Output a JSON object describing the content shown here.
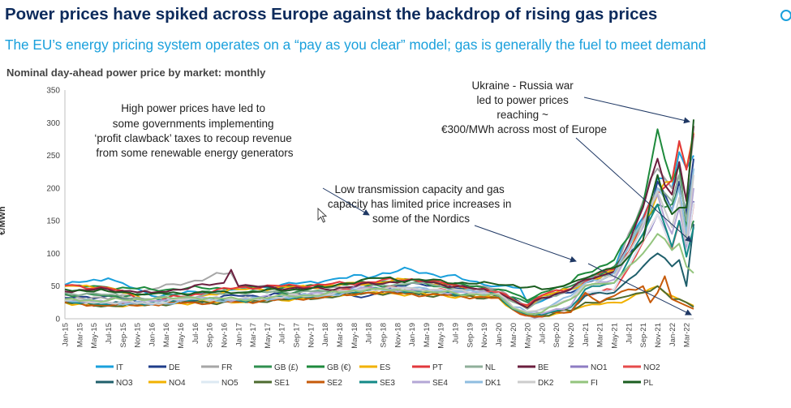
{
  "header": {
    "title": "Power prices have spiked across Europe against the backdrop of rising gas prices",
    "subtitle": "The EU’s energy pricing system operates on a “pay as you clear” model; gas is generally the fuel to meet demand"
  },
  "chart_data": {
    "type": "line",
    "title": "Nominal day-ahead power price by market: monthly",
    "ylabel": "€/MWh",
    "xlabel": "",
    "ylim": [
      0,
      350
    ],
    "yticks": [
      0,
      50,
      100,
      150,
      200,
      250,
      300,
      350
    ],
    "grid": false,
    "legend_position": "bottom",
    "x_tick_labels": [
      "Jan-15",
      "Mar-15",
      "May-15",
      "Jul-15",
      "Sep-15",
      "Nov-15",
      "Jan-16",
      "Mar-16",
      "May-16",
      "Jul-16",
      "Sep-16",
      "Nov-16",
      "Jan-17",
      "Mar-17",
      "May-17",
      "Jul-17",
      "Sep-17",
      "Nov-17",
      "Jan-18",
      "Mar-18",
      "May-18",
      "Jul-18",
      "Sep-18",
      "Nov-18",
      "Jan-19",
      "Mar-19",
      "May-19",
      "Jul-19",
      "Sep-19",
      "Nov-19",
      "Jan-20",
      "Mar-20",
      "May-20",
      "Jul-20",
      "Sep-20",
      "Nov-20",
      "Jan-21",
      "Mar-21",
      "May-21",
      "Jul-21",
      "Sep-21",
      "Nov-21",
      "Jan-22",
      "Mar-22"
    ],
    "annotations": [
      "High power prices have led to some governments implementing ‘profit clawback’ taxes to recoup revenue from some renewable energy generators",
      "Ukraine - Russia war led to power prices reaching ~ €300/MWh across most of Europe",
      "Low transmission capacity and gas capacity has limited price increases in some of the Nordics"
    ],
    "series": [
      {
        "name": "IT",
        "color": "#1aa0dc",
        "anchors": {
          "0": 52,
          "6": 62,
          "12": 35,
          "24": 45,
          "36": 58,
          "48": 75,
          "60": 50,
          "63": 47,
          "64": 25,
          "66": 27,
          "70": 45,
          "72": 60,
          "76": 75,
          "78": 128,
          "80": 155,
          "82": 215,
          "84": 200,
          "85": 255,
          "86": 230,
          "87": 250
        }
      },
      {
        "name": "DE",
        "color": "#1f3d8a",
        "anchors": {
          "0": 32,
          "6": 35,
          "12": 22,
          "24": 35,
          "36": 38,
          "42": 35,
          "48": 55,
          "60": 40,
          "63": 25,
          "64": 17,
          "66": 30,
          "70": 40,
          "72": 55,
          "76": 70,
          "78": 100,
          "80": 120,
          "82": 210,
          "84": 165,
          "85": 210,
          "86": 160,
          "87": 245
        }
      },
      {
        "name": "FR",
        "color": "#a6a6a6",
        "anchors": {
          "0": 36,
          "6": 30,
          "12": 45,
          "23": 70,
          "24": 50,
          "36": 45,
          "48": 60,
          "60": 45,
          "63": 25,
          "64": 18,
          "66": 35,
          "70": 45,
          "72": 60,
          "76": 70,
          "78": 130,
          "80": 180,
          "82": 230,
          "84": 200,
          "85": 220,
          "86": 185,
          "87": 280
        }
      },
      {
        "name": "GB (£)",
        "color": "#2f8f4f",
        "anchors": {
          "0": 38,
          "6": 35,
          "12": 38,
          "24": 40,
          "36": 42,
          "48": 55,
          "60": 38,
          "63": 30,
          "64": 25,
          "66": 35,
          "70": 50,
          "72": 60,
          "76": 80,
          "78": 110,
          "80": 150,
          "82": 175,
          "84": 175,
          "85": 200,
          "86": 120,
          "87": 150
        }
      },
      {
        "name": "GB (€)",
        "color": "#1e8a3c",
        "anchors": {
          "0": 50,
          "6": 48,
          "12": 45,
          "24": 48,
          "36": 50,
          "48": 60,
          "60": 45,
          "63": 35,
          "64": 28,
          "66": 40,
          "70": 55,
          "72": 70,
          "76": 90,
          "78": 125,
          "80": 175,
          "82": 290,
          "84": 210,
          "85": 235,
          "86": 140,
          "87": 180
        }
      },
      {
        "name": "ES",
        "color": "#f2b200",
        "anchors": {
          "0": 50,
          "6": 48,
          "12": 25,
          "15": 28,
          "24": 45,
          "36": 50,
          "48": 60,
          "60": 40,
          "63": 22,
          "64": 20,
          "66": 35,
          "70": 45,
          "72": 55,
          "76": 75,
          "78": 100,
          "80": 150,
          "82": 190,
          "84": 210,
          "85": 270,
          "86": 230,
          "87": 285
        }
      },
      {
        "name": "PT",
        "color": "#e2383c",
        "anchors": {
          "0": 51,
          "6": 47,
          "12": 27,
          "24": 48,
          "36": 52,
          "48": 61,
          "60": 41,
          "63": 23,
          "64": 21,
          "66": 36,
          "70": 46,
          "72": 57,
          "76": 76,
          "78": 102,
          "80": 152,
          "82": 192,
          "84": 212,
          "85": 272,
          "86": 228,
          "87": 283
        }
      },
      {
        "name": "NL",
        "color": "#8faf9a",
        "anchors": {
          "0": 40,
          "6": 37,
          "12": 30,
          "24": 40,
          "36": 42,
          "48": 55,
          "60": 40,
          "63": 22,
          "64": 15,
          "66": 30,
          "70": 45,
          "72": 60,
          "76": 70,
          "78": 110,
          "80": 145,
          "82": 200,
          "84": 180,
          "85": 220,
          "86": 150,
          "87": 230
        }
      },
      {
        "name": "BE",
        "color": "#6b1f3e",
        "anchors": {
          "0": 42,
          "6": 45,
          "12": 40,
          "22": 55,
          "23": 75,
          "24": 50,
          "36": 45,
          "48": 60,
          "60": 40,
          "63": 22,
          "64": 17,
          "66": 32,
          "70": 45,
          "72": 60,
          "76": 72,
          "78": 115,
          "80": 170,
          "82": 245,
          "84": 190,
          "85": 240,
          "86": 180,
          "87": 295
        }
      },
      {
        "name": "NO1",
        "color": "#8e7cc3",
        "anchors": {
          "0": 28,
          "6": 20,
          "12": 25,
          "18": 30,
          "24": 28,
          "36": 38,
          "42": 48,
          "48": 45,
          "60": 40,
          "62": 15,
          "64": 5,
          "66": 4,
          "68": 10,
          "70": 15,
          "72": 40,
          "76": 45,
          "78": 80,
          "80": 120,
          "82": 160,
          "84": 110,
          "85": 150,
          "86": 100,
          "87": 180
        }
      },
      {
        "name": "NO2",
        "color": "#e64b4b",
        "anchors": {
          "0": 28,
          "6": 20,
          "12": 25,
          "18": 30,
          "24": 28,
          "36": 38,
          "42": 48,
          "48": 45,
          "60": 40,
          "62": 14,
          "64": 4,
          "66": 3,
          "68": 9,
          "70": 14,
          "72": 38,
          "76": 44,
          "78": 78,
          "80": 118,
          "82": 160,
          "84": 108,
          "85": 148,
          "86": 98,
          "87": 176
        }
      },
      {
        "name": "NO3",
        "color": "#1f5f6b",
        "anchors": {
          "0": 27,
          "6": 22,
          "12": 25,
          "18": 28,
          "24": 27,
          "36": 36,
          "42": 44,
          "48": 40,
          "60": 35,
          "62": 15,
          "64": 6,
          "66": 5,
          "68": 10,
          "70": 15,
          "72": 35,
          "76": 40,
          "78": 60,
          "80": 80,
          "82": 100,
          "84": 80,
          "85": 90,
          "86": 50,
          "87": 145
        }
      },
      {
        "name": "NO4",
        "color": "#f2b200",
        "anchors": {
          "0": 25,
          "6": 20,
          "12": 22,
          "18": 25,
          "24": 25,
          "36": 34,
          "42": 40,
          "48": 38,
          "60": 32,
          "62": 14,
          "64": 5,
          "66": 4,
          "68": 8,
          "70": 12,
          "72": 20,
          "76": 25,
          "78": 30,
          "80": 40,
          "82": 50,
          "84": 35,
          "85": 30,
          "86": 25,
          "87": 20
        }
      },
      {
        "name": "NO5",
        "color": "#dde9f3",
        "anchors": {
          "0": 27,
          "6": 20,
          "12": 25,
          "18": 30,
          "24": 27,
          "36": 38,
          "42": 47,
          "48": 44,
          "60": 39,
          "62": 14,
          "64": 4,
          "66": 4,
          "68": 10,
          "70": 15,
          "72": 40,
          "76": 45,
          "78": 80,
          "80": 120,
          "82": 160,
          "84": 110,
          "85": 150,
          "86": 98,
          "87": 178
        }
      },
      {
        "name": "SE1",
        "color": "#4d6b2f",
        "anchors": {
          "0": 25,
          "6": 20,
          "12": 22,
          "18": 25,
          "24": 26,
          "36": 33,
          "42": 40,
          "48": 38,
          "60": 32,
          "62": 14,
          "64": 5,
          "66": 4,
          "68": 10,
          "70": 12,
          "72": 25,
          "76": 30,
          "78": 35,
          "80": 40,
          "82": 50,
          "84": 30,
          "85": 30,
          "86": 25,
          "87": 18
        }
      },
      {
        "name": "SE2",
        "color": "#c65a0a",
        "anchors": {
          "0": 25,
          "6": 20,
          "12": 22,
          "18": 25,
          "24": 26,
          "36": 33,
          "42": 40,
          "48": 38,
          "60": 32,
          "62": 14,
          "64": 5,
          "66": 4,
          "68": 10,
          "70": 10,
          "72": 40,
          "74": 25,
          "76": 35,
          "78": 45,
          "80": 50,
          "81": 25,
          "82": 40,
          "83": 65,
          "84": 30,
          "85": 25,
          "86": 20,
          "87": 15
        }
      },
      {
        "name": "SE3",
        "color": "#138a87",
        "anchors": {
          "0": 28,
          "6": 22,
          "12": 25,
          "18": 30,
          "24": 28,
          "36": 36,
          "42": 45,
          "48": 42,
          "60": 36,
          "62": 15,
          "64": 7,
          "66": 6,
          "68": 12,
          "70": 18,
          "72": 45,
          "76": 55,
          "78": 90,
          "80": 130,
          "82": 175,
          "84": 110,
          "85": 150,
          "86": 95,
          "87": 140
        }
      },
      {
        "name": "SE4",
        "color": "#b4a7d6",
        "anchors": {
          "0": 28,
          "6": 24,
          "12": 27,
          "18": 32,
          "24": 30,
          "36": 38,
          "42": 47,
          "48": 44,
          "60": 38,
          "62": 17,
          "64": 9,
          "66": 8,
          "68": 15,
          "70": 20,
          "72": 50,
          "76": 60,
          "78": 100,
          "80": 140,
          "82": 190,
          "84": 130,
          "85": 170,
          "86": 110,
          "87": 200
        }
      },
      {
        "name": "DK1",
        "color": "#8fbde0",
        "anchors": {
          "0": 28,
          "6": 25,
          "12": 22,
          "18": 30,
          "24": 29,
          "36": 36,
          "42": 45,
          "48": 47,
          "60": 38,
          "62": 18,
          "64": 10,
          "66": 15,
          "68": 25,
          "70": 35,
          "72": 55,
          "76": 70,
          "78": 110,
          "80": 150,
          "82": 200,
          "84": 165,
          "85": 200,
          "86": 130,
          "87": 230
        }
      },
      {
        "name": "DK2",
        "color": "#cccccc",
        "anchors": {
          "0": 28,
          "6": 25,
          "12": 24,
          "18": 31,
          "24": 30,
          "36": 37,
          "42": 46,
          "48": 47,
          "60": 38,
          "62": 18,
          "64": 11,
          "66": 14,
          "68": 22,
          "70": 30,
          "72": 52,
          "76": 65,
          "78": 100,
          "80": 145,
          "82": 195,
          "84": 140,
          "85": 185,
          "86": 115,
          "87": 220
        }
      },
      {
        "name": "FI",
        "color": "#93c47d",
        "anchors": {
          "0": 30,
          "6": 28,
          "12": 30,
          "18": 32,
          "24": 30,
          "36": 38,
          "42": 45,
          "48": 42,
          "60": 36,
          "62": 16,
          "64": 8,
          "66": 10,
          "68": 20,
          "70": 30,
          "72": 50,
          "76": 55,
          "78": 80,
          "80": 100,
          "82": 130,
          "84": 105,
          "85": 115,
          "86": 80,
          "87": 70
        }
      },
      {
        "name": "PL",
        "color": "#1b5e20",
        "anchors": {
          "0": 45,
          "6": 42,
          "12": 38,
          "18": 40,
          "24": 40,
          "36": 48,
          "42": 62,
          "48": 60,
          "60": 52,
          "62": 52,
          "64": 48,
          "66": 45,
          "68": 48,
          "70": 55,
          "72": 62,
          "76": 78,
          "78": 95,
          "80": 120,
          "82": 220,
          "84": 160,
          "85": 170,
          "86": 170,
          "87": 305
        }
      }
    ]
  }
}
